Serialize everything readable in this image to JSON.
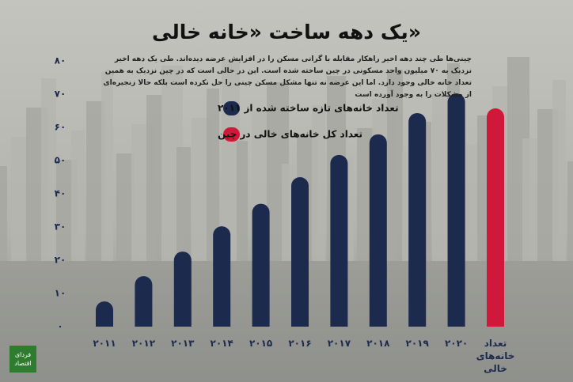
{
  "chart_data": {
    "type": "bar",
    "title": "یک دهه ساخت «خانه خالی»",
    "subtitle": "چینی‌ها طی چند دهه اخیر راهکار مقابله با گرانی مسکن را در افزایش عرضه دیده‌اند. طی یک دهه اخیر نزدیک به ۷۰ میلیون واحد مسکونی در چین ساخته شده است. این در حالی است که در چین نزدیک به همین تعداد خانه خالی وجود دارد. اما این عرضه نه تنها مشکل مسکن چینی را حل نکرده است بلکه حالا زنجیره‌ای از مشکلات را به وجود آورده است",
    "categories": [
      "۲۰۱۱",
      "۲۰۱۲",
      "۲۰۱۳",
      "۲۰۱۴",
      "۲۰۱۵",
      "۲۰۱۶",
      "۲۰۱۷",
      "۲۰۱۸",
      "۲۰۱۹",
      "۲۰۲۰",
      "تعداد خانه‌های خالی"
    ],
    "series": [
      {
        "name": "تعداد خانه‌های تازه ساخته شده از ۲۰۱۱",
        "color": "#1c2a4e",
        "values": [
          7.6,
          15.2,
          22.6,
          30.2,
          37,
          45,
          51.7,
          57.9,
          64.3,
          70.2,
          null
        ]
      },
      {
        "name": "تعداد کل خانه‌های خالی در چین",
        "color": "#d0193a",
        "values": [
          null,
          null,
          null,
          null,
          null,
          null,
          null,
          null,
          null,
          null,
          65.7
        ]
      }
    ],
    "ylim": [
      0,
      80
    ],
    "yticks": [
      {
        "value": 0,
        "label": "۰"
      },
      {
        "value": 10,
        "label": "۱۰"
      },
      {
        "value": 20,
        "label": "۲۰"
      },
      {
        "value": 30,
        "label": "۳۰"
      },
      {
        "value": 40,
        "label": "۴۰"
      },
      {
        "value": 50,
        "label": "۵۰"
      },
      {
        "value": 60,
        "label": "۶۰"
      },
      {
        "value": 70,
        "label": "۷۰"
      },
      {
        "value": 80,
        "label": "۸۰"
      }
    ],
    "grid": false
  },
  "logo": "فردای اقتصاد"
}
